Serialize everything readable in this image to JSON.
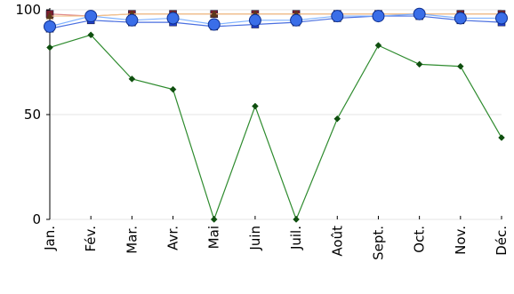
{
  "chart_data": {
    "type": "line",
    "title": "",
    "xlabel": "",
    "ylabel": "",
    "ylim": [
      0,
      100
    ],
    "yticks": [
      0,
      50,
      100
    ],
    "grid": "horizontal",
    "legend": "none",
    "categories": [
      "Jan.",
      "Fév.",
      "Mar.",
      "Avr.",
      "Mai",
      "Juin",
      "Juil.",
      "Août",
      "Sept.",
      "Oct.",
      "Nov.",
      "Déc."
    ],
    "series": [
      {
        "color": "#2e8b2e",
        "marker_color": "#0f4f0f",
        "marker": "diamond",
        "values": [
          82,
          88,
          67,
          62,
          0,
          54,
          0,
          48,
          83,
          74,
          73,
          39
        ]
      },
      {
        "color": "#e08a8a",
        "marker_color": "#7a1f2e",
        "marker": "square",
        "values": [
          98,
          97,
          98,
          98,
          98,
          98,
          98,
          98,
          98,
          98,
          98,
          98
        ]
      },
      {
        "color": "#f2c38a",
        "marker_color": "#5c3a1a",
        "marker": "triangle",
        "values": [
          97,
          97,
          98,
          98,
          98,
          98,
          98,
          98,
          98,
          98,
          98,
          98
        ]
      },
      {
        "color": "#4a6fe0",
        "marker_color": "#1f3fcf",
        "marker": "square",
        "values": [
          91,
          95,
          94,
          94,
          92,
          93,
          94,
          96,
          97,
          97,
          95,
          94
        ]
      },
      {
        "color": "#7fb2ff",
        "marker_color": "#3a6ee8",
        "marker": "circle",
        "values": [
          92,
          97,
          95,
          96,
          93,
          95,
          95,
          97,
          97,
          98,
          96,
          96
        ]
      }
    ]
  }
}
